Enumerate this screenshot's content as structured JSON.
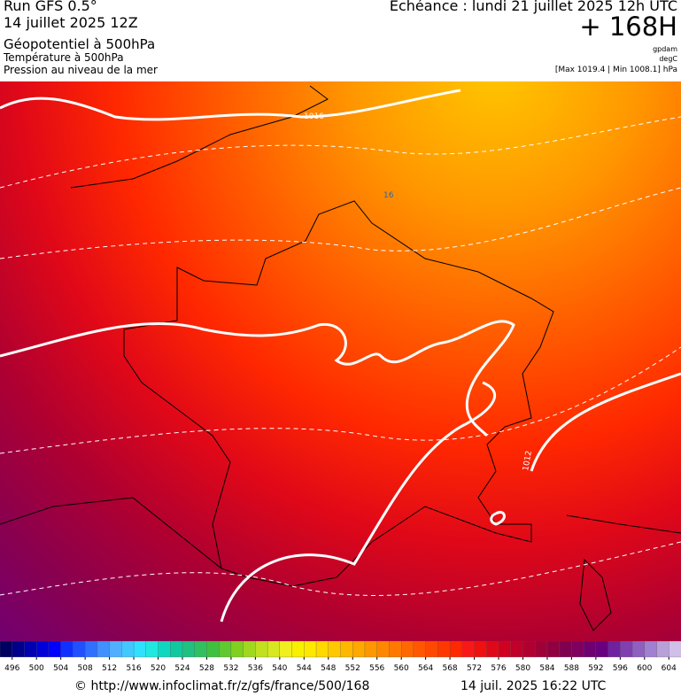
{
  "header": {
    "run": "Run GFS 0.5°",
    "date": "14 juillet 2025 12Z",
    "field": "Géopotentiel à 500hPa",
    "field2": "Température à 500hPa",
    "field3": "Pression au niveau de la mer",
    "echeance": "Echéance : lundi 21 juillet 2025 12h UTC",
    "horizon": "+ 168H",
    "unit1": "gpdam",
    "unit2": "degC",
    "range": "[Max 1019.4 | Min 1008.1] hPa"
  },
  "map": {
    "contour_labels": [
      "1016",
      "16",
      "1012"
    ]
  },
  "legend": {
    "ticks": [
      496,
      500,
      504,
      508,
      512,
      516,
      520,
      524,
      528,
      532,
      536,
      540,
      544,
      548,
      552,
      556,
      560,
      564,
      568,
      572,
      576,
      580,
      584,
      588,
      592,
      596,
      600,
      604
    ],
    "colors": [
      "#000060",
      "#00008a",
      "#0000b0",
      "#0000d8",
      "#0000ff",
      "#1030ff",
      "#2050ff",
      "#3070ff",
      "#4090ff",
      "#50b0ff",
      "#40c8ff",
      "#30e0ff",
      "#20e8e0",
      "#10d8c0",
      "#10c8a0",
      "#20c080",
      "#30c060",
      "#40c040",
      "#60c830",
      "#80d020",
      "#a0d820",
      "#c0e020",
      "#d8e820",
      "#f0f020",
      "#f8f000",
      "#ffe800",
      "#ffd800",
      "#ffc800",
      "#ffb800",
      "#ffa800",
      "#ff9800",
      "#ff8800",
      "#ff7800",
      "#ff6800",
      "#ff5800",
      "#ff4800",
      "#ff3800",
      "#ff2800",
      "#f81818",
      "#f01010",
      "#e00818",
      "#d00020",
      "#c00028",
      "#b00030",
      "#a00038",
      "#900040",
      "#800050",
      "#800060",
      "#700070",
      "#680080",
      "#7020a0",
      "#8040b0",
      "#9060c0",
      "#a080d0",
      "#b8a0d8",
      "#d0c0e8"
    ]
  },
  "footer": {
    "url": "© http://www.infoclimat.fr/z/gfs/france/500/168",
    "timestamp": "14 juil. 2025 16:22 UTC"
  }
}
